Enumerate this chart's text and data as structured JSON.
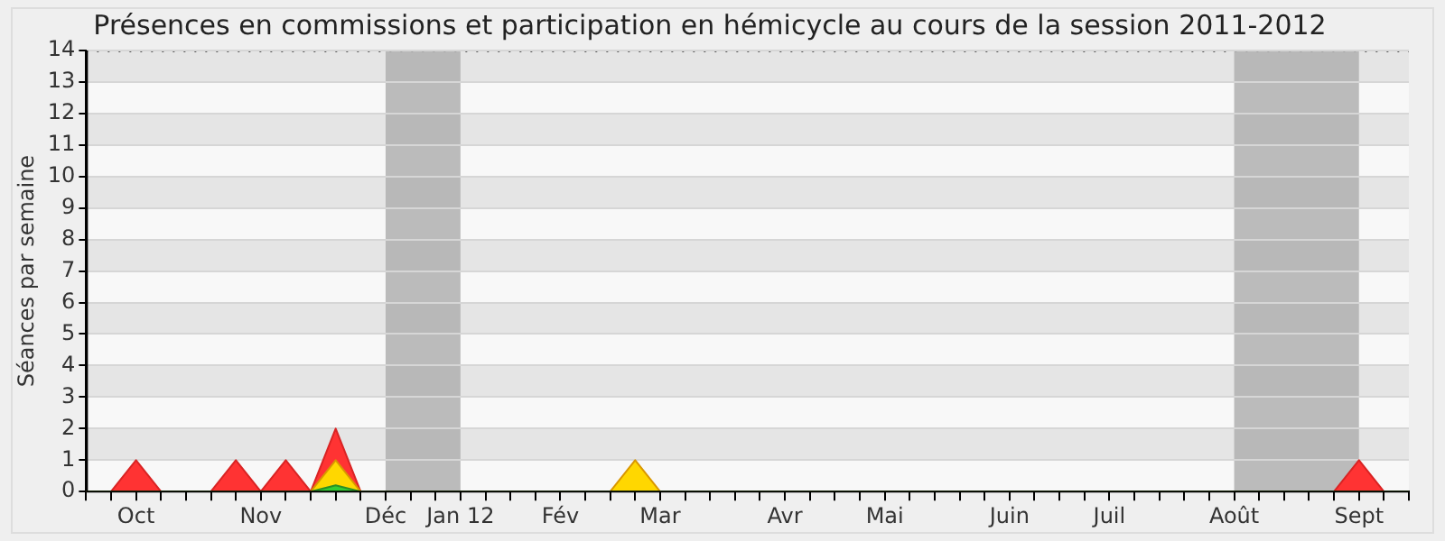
{
  "chart_data": {
    "type": "area",
    "title": "Présences en commissions et participation en hémicycle au cours de la session 2011-2012",
    "ylabel": "Séances par semaine",
    "categories": [
      null,
      null,
      "Oct",
      null,
      null,
      null,
      null,
      "Nov",
      null,
      null,
      null,
      null,
      "Déc",
      null,
      null,
      "Jan 12",
      null,
      null,
      null,
      "Fév",
      null,
      null,
      null,
      "Mar",
      null,
      null,
      null,
      null,
      "Avr",
      null,
      null,
      null,
      "Mai",
      null,
      null,
      null,
      null,
      "Juin",
      null,
      null,
      null,
      "Juil",
      null,
      null,
      null,
      null,
      "Août",
      null,
      null,
      null,
      null,
      "Sept",
      null,
      null
    ],
    "series": [
      {
        "color": "#ff3333",
        "values": [
          0,
          0,
          1,
          0,
          0,
          0,
          1,
          0,
          1,
          0,
          2,
          0,
          0,
          0,
          0,
          0,
          0,
          0,
          0,
          0,
          0,
          0,
          0,
          0,
          0,
          0,
          0,
          0,
          0,
          0,
          0,
          0,
          0,
          0,
          0,
          0,
          0,
          0,
          0,
          0,
          0,
          0,
          0,
          0,
          0,
          0,
          0,
          0,
          0,
          0,
          0,
          1,
          0,
          0
        ]
      },
      {
        "color": "#ffd700",
        "values": [
          0,
          0,
          0,
          0,
          0,
          0,
          0,
          0,
          0,
          0,
          1,
          0,
          0,
          0,
          0,
          0,
          0,
          0,
          0,
          0,
          0,
          0,
          1,
          0,
          0,
          0,
          0,
          0,
          0,
          0,
          0,
          0,
          0,
          0,
          0,
          0,
          0,
          0,
          0,
          0,
          0,
          0,
          0,
          0,
          0,
          0,
          0,
          0,
          0,
          0,
          0,
          0,
          0,
          0
        ]
      },
      {
        "color": "#33cc33",
        "values": [
          0,
          0,
          0,
          0,
          0,
          0,
          0,
          0,
          0,
          0,
          0.2,
          0,
          0,
          0,
          0,
          0,
          0,
          0,
          0,
          0,
          0,
          0,
          0,
          0,
          0,
          0,
          0,
          0,
          0,
          0,
          0,
          0,
          0,
          0,
          0,
          0,
          0,
          0,
          0,
          0,
          0,
          0,
          0,
          0,
          0,
          0,
          0,
          0,
          0,
          0,
          0,
          0,
          0,
          0
        ]
      }
    ],
    "ylim": [
      0,
      14
    ],
    "yticks": [
      0,
      1,
      2,
      3,
      4,
      5,
      6,
      7,
      8,
      9,
      10,
      11,
      12,
      13,
      14
    ],
    "grid": "y",
    "legend": false,
    "marker": "none",
    "line_style": "solid",
    "bands": [
      {
        "axis": "x",
        "from": "Déc",
        "to": "Jan 12",
        "color": "#b0b0b0"
      },
      {
        "axis": "x",
        "from": "Août",
        "to": "Sept",
        "color": "#b0b0b0"
      }
    ]
  }
}
